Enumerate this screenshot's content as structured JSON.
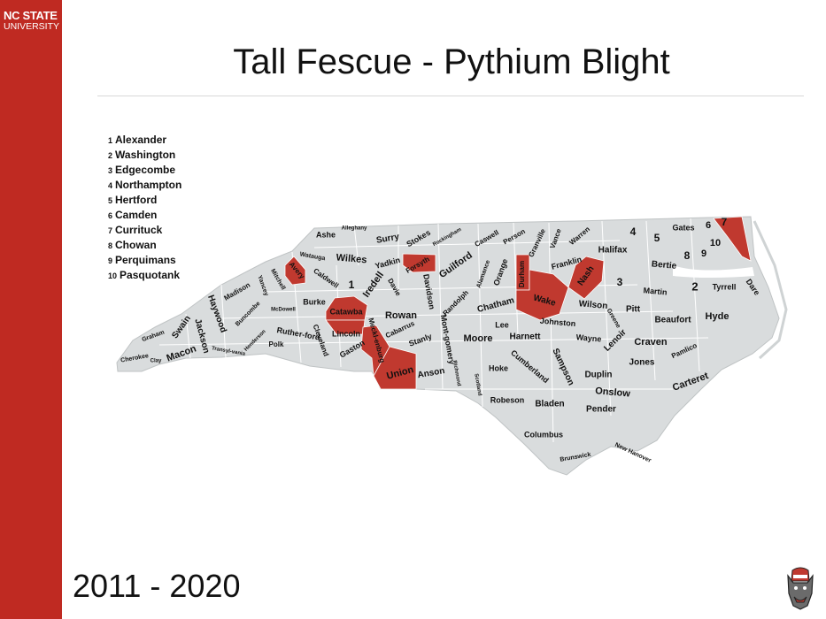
{
  "logo": {
    "line1": "NC STATE",
    "line2": "UNIVERSITY"
  },
  "title": "Tall Fescue - Pythium Blight",
  "years": "2011 - 2020",
  "legend": [
    {
      "num": "1",
      "name": "Alexander"
    },
    {
      "num": "2",
      "name": "Washington"
    },
    {
      "num": "3",
      "name": "Edgecombe"
    },
    {
      "num": "4",
      "name": "Northampton"
    },
    {
      "num": "5",
      "name": "Hertford"
    },
    {
      "num": "6",
      "name": "Camden"
    },
    {
      "num": "7",
      "name": "Currituck"
    },
    {
      "num": "8",
      "name": "Chowan"
    },
    {
      "num": "9",
      "name": "Perquimans"
    },
    {
      "num": "10",
      "name": "Pasquotank"
    }
  ],
  "map": {
    "colors": {
      "county": "#d9dcdd",
      "border": "#ffffff",
      "highlight": "#c0392f",
      "sidebar": "#bf2a22"
    },
    "highlighted_counties": [
      "Avery",
      "Forsyth",
      "Catawba",
      "Lincoln",
      "Mecklenburg",
      "Union",
      "Durham",
      "Wake",
      "Nash",
      "Currituck"
    ],
    "labels": [
      "Ashe",
      "Alleghany",
      "Surry",
      "Stokes",
      "Rockingham",
      "Caswell",
      "Person",
      "Granville",
      "Vance",
      "Warren",
      "Halifax",
      "Gates",
      "Watauga",
      "Wilkes",
      "Yadkin",
      "Forsyth",
      "Guilford",
      "Alamance",
      "Orange",
      "Durham",
      "Franklin",
      "Bertie",
      "Avery",
      "Mitchell",
      "Caldwell",
      "1",
      "Iredell",
      "Davie",
      "Davidson",
      "Madison",
      "Yancey",
      "Burke",
      "Catawba",
      "Randolph",
      "Chatham",
      "Wake",
      "Nash",
      "3",
      "Martin",
      "2",
      "Tyrrell",
      "Dare",
      "Haywood",
      "Buncombe",
      "McDowell",
      "Rowan",
      "Wilson",
      "Pitt",
      "Greene",
      "Beaufort",
      "Hyde",
      "Graham",
      "Swain",
      "Jackson",
      "Ruther-ford",
      "Lincoln",
      "Cleveland",
      "Meckl-enburg",
      "Cabarrus",
      "Lee",
      "Johnston",
      "Harnett",
      "Stanly",
      "Mont-gomery",
      "Moore",
      "Wayne",
      "Lenoir",
      "Craven",
      "Pamlico",
      "Cherokee",
      "Clay",
      "Macon",
      "Transyl-vania",
      "Henderson",
      "Polk",
      "Gaston",
      "Union",
      "Anson",
      "Richmond",
      "Scotland",
      "Hoke",
      "Cumberland",
      "Sampson",
      "Duplin",
      "Jones",
      "Onslow",
      "Carteret",
      "Robeson",
      "Bladen",
      "Pender",
      "Columbus",
      "Brunswick",
      "New Hanover",
      "4",
      "5",
      "6",
      "7",
      "10",
      "8",
      "9"
    ]
  }
}
